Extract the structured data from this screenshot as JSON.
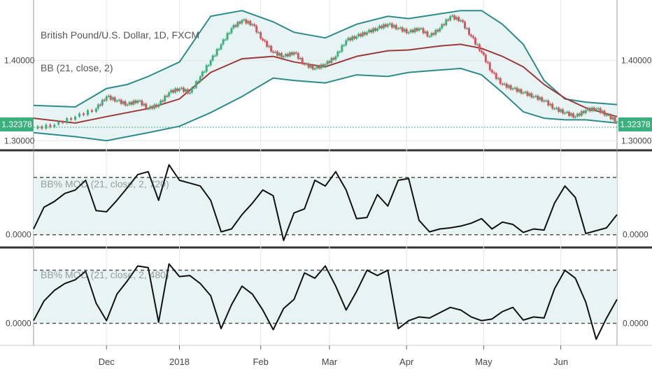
{
  "header": {
    "symbol_title": "British Pound/U.S. Dollar, 1D, FXCM",
    "bb_label": "BB (21, close, 2)",
    "osc1_label": "BB% MOD (21, close, 2, 720)",
    "osc2_label": "BB% MOD (21, close, 2, 480)",
    "last_price": "1.32378"
  },
  "colors": {
    "up": "#3bb07c",
    "down": "#e0505a",
    "band": "#2e8b8b",
    "band_fill": "#e8f4f4",
    "basis": "#9b3a3a",
    "osc_line": "#111111",
    "osc_fill": "#e8f3f3",
    "grid": "#e6e6e6",
    "divider": "#333333"
  },
  "chart_data": [
    {
      "type": "candlestick",
      "title": "British Pound/U.S. Dollar, 1D, FXCM",
      "y_tick_labels": [
        "1.40000",
        "1.30000"
      ],
      "ylim": [
        1.295,
        1.47
      ],
      "x_tick_labels": [
        "Dec",
        "2018",
        "Feb",
        "Mar",
        "Apr",
        "May",
        "Jun"
      ],
      "last_price": 1.32378,
      "series": [
        {
          "name": "BB (21, close, 2)",
          "kind": "bands",
          "x": [
            0,
            20,
            35,
            45,
            55,
            70,
            85,
            100,
            115,
            125,
            140,
            155,
            170,
            180,
            195,
            205,
            215,
            225,
            235,
            245,
            255,
            265,
            280
          ],
          "upper": [
            1.344,
            1.342,
            1.365,
            1.37,
            1.38,
            1.398,
            1.455,
            1.462,
            1.448,
            1.435,
            1.428,
            1.445,
            1.455,
            1.452,
            1.458,
            1.462,
            1.462,
            1.445,
            1.42,
            1.375,
            1.352,
            1.348,
            1.345
          ],
          "basis": [
            1.328,
            1.322,
            1.33,
            1.335,
            1.34,
            1.352,
            1.385,
            1.402,
            1.405,
            1.398,
            1.392,
            1.405,
            1.412,
            1.413,
            1.418,
            1.42,
            1.415,
            1.405,
            1.392,
            1.37,
            1.353,
            1.341,
            1.33
          ],
          "lower": [
            1.31,
            1.305,
            1.3,
            1.305,
            1.31,
            1.318,
            1.335,
            1.355,
            1.378,
            1.375,
            1.372,
            1.382,
            1.38,
            1.385,
            1.388,
            1.39,
            1.382,
            1.36,
            1.336,
            1.328,
            1.326,
            1.326,
            1.322
          ]
        },
        {
          "name": "GBP/USD close",
          "x": [
            0,
            10,
            20,
            30,
            35,
            40,
            45,
            50,
            55,
            60,
            65,
            70,
            75,
            80,
            85,
            90,
            95,
            100,
            105,
            110,
            115,
            120,
            125,
            130,
            135,
            140,
            145,
            150,
            155,
            160,
            165,
            170,
            175,
            180,
            185,
            190,
            195,
            200,
            205,
            210,
            215,
            220,
            225,
            230,
            235,
            240,
            245,
            250,
            255,
            260,
            265,
            270,
            275,
            280
          ],
          "close": [
            1.315,
            1.32,
            1.33,
            1.34,
            1.355,
            1.35,
            1.345,
            1.35,
            1.34,
            1.345,
            1.36,
            1.365,
            1.36,
            1.38,
            1.4,
            1.42,
            1.44,
            1.45,
            1.445,
            1.425,
            1.41,
            1.405,
            1.41,
            1.395,
            1.39,
            1.395,
            1.405,
            1.425,
            1.43,
            1.435,
            1.44,
            1.445,
            1.44,
            1.435,
            1.44,
            1.43,
            1.44,
            1.455,
            1.45,
            1.43,
            1.41,
            1.385,
            1.37,
            1.365,
            1.36,
            1.355,
            1.35,
            1.34,
            1.335,
            1.33,
            1.338,
            1.34,
            1.332,
            1.324
          ]
        }
      ]
    },
    {
      "type": "line",
      "title": "BB% MOD (21, close, 2, 720)",
      "y_tick_labels": [
        "0.0000"
      ],
      "ylim": [
        -0.15,
        1.4
      ],
      "reference_lines": [
        0,
        1
      ],
      "series": [
        {
          "name": "BB% MOD (21, close, 2, 720)",
          "x": [
            0,
            5,
            10,
            15,
            20,
            25,
            30,
            35,
            40,
            45,
            50,
            55,
            60,
            65,
            70,
            75,
            80,
            85,
            90,
            95,
            100,
            105,
            110,
            115,
            120,
            125,
            130,
            135,
            140,
            145,
            150,
            155,
            160,
            165,
            170,
            175,
            180,
            185,
            190,
            195,
            200,
            205,
            210,
            215,
            220,
            225,
            230,
            235,
            240,
            245,
            250,
            255,
            260,
            265,
            270,
            275,
            280
          ],
          "y": [
            0.1,
            0.48,
            0.58,
            0.72,
            0.78,
            0.95,
            0.42,
            0.4,
            0.6,
            0.82,
            1.05,
            1.1,
            0.6,
            1.22,
            0.95,
            0.9,
            0.85,
            0.6,
            0.05,
            0.1,
            0.35,
            0.55,
            0.78,
            0.68,
            -0.1,
            0.38,
            0.45,
            0.95,
            0.85,
            1.1,
            0.78,
            0.28,
            0.3,
            0.7,
            0.5,
            0.95,
            0.98,
            0.25,
            0.05,
            0.1,
            0.12,
            0.15,
            0.2,
            0.28,
            0.1,
            0.22,
            0.18,
            0.04,
            0.1,
            0.08,
            0.55,
            0.85,
            0.65,
            0.02,
            0.07,
            0.12,
            0.35
          ]
        }
      ]
    },
    {
      "type": "line",
      "title": "BB% MOD (21, close, 2, 480)",
      "y_tick_labels": [
        "0.0000"
      ],
      "ylim": [
        -0.35,
        1.35
      ],
      "reference_lines": [
        0,
        1
      ],
      "series": [
        {
          "name": "BB% MOD (21, close, 2, 480)",
          "x": [
            0,
            5,
            10,
            15,
            20,
            25,
            30,
            35,
            40,
            45,
            50,
            55,
            60,
            65,
            70,
            75,
            80,
            85,
            90,
            95,
            100,
            105,
            110,
            115,
            120,
            125,
            130,
            135,
            140,
            145,
            150,
            155,
            160,
            165,
            170,
            175,
            180,
            185,
            190,
            195,
            200,
            205,
            210,
            215,
            220,
            225,
            230,
            235,
            240,
            245,
            250,
            255,
            260,
            265,
            270,
            275,
            280
          ],
          "y": [
            0.05,
            0.42,
            0.62,
            0.75,
            0.82,
            0.98,
            0.38,
            0.05,
            0.55,
            0.8,
            1.08,
            1.05,
            0.02,
            1.12,
            0.88,
            0.9,
            0.75,
            0.52,
            -0.1,
            0.35,
            0.7,
            0.55,
            0.25,
            -0.12,
            0.28,
            0.45,
            0.95,
            0.85,
            1.08,
            0.7,
            0.25,
            0.6,
            1.0,
            0.9,
            1.0,
            -0.1,
            0.05,
            0.12,
            0.1,
            0.2,
            0.3,
            0.25,
            0.12,
            0.05,
            0.08,
            0.22,
            0.3,
            0.06,
            0.12,
            0.1,
            0.65,
            1.0,
            0.85,
            0.4,
            -0.3,
            0.1,
            0.45
          ]
        }
      ]
    }
  ]
}
